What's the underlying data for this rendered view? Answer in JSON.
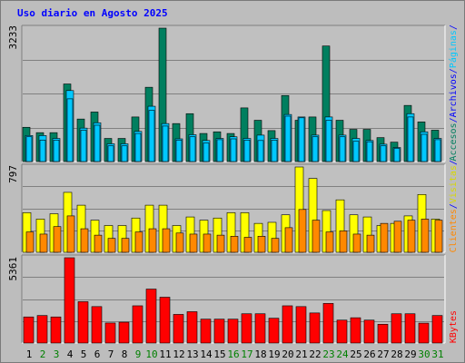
{
  "title": "Uso diario en Agosto 2025",
  "colors": {
    "accesos": "#007f5f",
    "archivos": "#00c8ff",
    "paginas": "#00c8ff",
    "visitas": "#ffff00",
    "clientes": "#ff8800",
    "kbytes": "#ff0000",
    "weekend_label": "#008000",
    "weekday_label": "#000000",
    "separator": "#0000ff",
    "panel_bg": "#c0c0c0",
    "gridline": "#808080"
  },
  "chart_data": [
    {
      "type": "bar",
      "panel": "top",
      "ymax_label": "3233",
      "ylim": [
        0,
        3233
      ],
      "categories": [
        "1",
        "2",
        "3",
        "4",
        "5",
        "6",
        "7",
        "8",
        "9",
        "10",
        "11",
        "12",
        "13",
        "14",
        "15",
        "16",
        "17",
        "18",
        "19",
        "20",
        "21",
        "22",
        "23",
        "24",
        "25",
        "26",
        "27",
        "28",
        "29",
        "30",
        "31"
      ],
      "legend": [
        "Accesos",
        "/",
        "Archivos",
        "/",
        "Páginas",
        "/"
      ],
      "series": [
        {
          "name": "Accesos",
          "values": [
            830,
            700,
            700,
            1880,
            1030,
            1200,
            560,
            560,
            1080,
            1800,
            3233,
            920,
            1160,
            680,
            720,
            680,
            1300,
            1000,
            750,
            1600,
            1000,
            1080,
            2800,
            1000,
            780,
            780,
            580,
            470,
            1360,
            960,
            760
          ]
        },
        {
          "name": "Archivos",
          "values": [
            630,
            630,
            560,
            1720,
            810,
            940,
            430,
            430,
            730,
            1340,
            920,
            550,
            650,
            510,
            560,
            600,
            560,
            640,
            560,
            1140,
            1080,
            640,
            1080,
            640,
            560,
            510,
            420,
            340,
            1160,
            720,
            560
          ]
        },
        {
          "name": "Páginas",
          "values": [
            600,
            520,
            520,
            1520,
            760,
            880,
            380,
            380,
            680,
            1240,
            860,
            520,
            600,
            450,
            530,
            550,
            520,
            510,
            520,
            1100,
            1060,
            600,
            1000,
            600,
            490,
            480,
            380,
            320,
            1080,
            660,
            530
          ]
        }
      ]
    },
    {
      "type": "bar",
      "panel": "middle",
      "ymax_label": "797",
      "ylim": [
        0,
        797
      ],
      "categories": [
        "1",
        "2",
        "3",
        "4",
        "5",
        "6",
        "7",
        "8",
        "9",
        "10",
        "11",
        "12",
        "13",
        "14",
        "15",
        "16",
        "17",
        "18",
        "19",
        "20",
        "21",
        "22",
        "23",
        "24",
        "25",
        "26",
        "27",
        "28",
        "29",
        "30",
        "31"
      ],
      "legend": [
        "Clientes",
        "/",
        "Visitas",
        "/"
      ],
      "series": [
        {
          "name": "Visitas",
          "values": [
            370,
            310,
            360,
            560,
            440,
            300,
            250,
            250,
            320,
            440,
            440,
            250,
            330,
            300,
            320,
            370,
            370,
            270,
            280,
            350,
            797,
            690,
            390,
            490,
            350,
            330,
            250,
            270,
            340,
            540,
            310
          ]
        },
        {
          "name": "Clientes",
          "values": [
            190,
            170,
            240,
            340,
            220,
            160,
            130,
            130,
            190,
            220,
            220,
            180,
            170,
            170,
            160,
            150,
            140,
            150,
            130,
            230,
            400,
            300,
            190,
            200,
            170,
            160,
            270,
            290,
            300,
            310,
            300
          ]
        }
      ]
    },
    {
      "type": "bar",
      "panel": "bottom",
      "ymax_label": "5361",
      "ylim": [
        0,
        5361
      ],
      "categories": [
        "1",
        "2",
        "3",
        "4",
        "5",
        "6",
        "7",
        "8",
        "9",
        "10",
        "11",
        "12",
        "13",
        "14",
        "15",
        "16",
        "17",
        "18",
        "19",
        "20",
        "21",
        "22",
        "23",
        "24",
        "25",
        "26",
        "27",
        "28",
        "29",
        "30",
        "31"
      ],
      "legend": [
        "KBytes"
      ],
      "series": [
        {
          "name": "KBytes",
          "values": [
            1640,
            1730,
            1640,
            5361,
            2600,
            2290,
            1260,
            1310,
            2340,
            3390,
            2880,
            1800,
            1970,
            1500,
            1500,
            1500,
            1840,
            1840,
            1560,
            2340,
            2290,
            1890,
            2490,
            1440,
            1590,
            1440,
            1180,
            1840,
            1840,
            1250,
            1730
          ]
        }
      ]
    }
  ],
  "day_labels": [
    {
      "label": "1",
      "weekend": false
    },
    {
      "label": "2",
      "weekend": true
    },
    {
      "label": "3",
      "weekend": true
    },
    {
      "label": "4",
      "weekend": false
    },
    {
      "label": "5",
      "weekend": false
    },
    {
      "label": "6",
      "weekend": false
    },
    {
      "label": "7",
      "weekend": false
    },
    {
      "label": "8",
      "weekend": false
    },
    {
      "label": "9",
      "weekend": true
    },
    {
      "label": "10",
      "weekend": true
    },
    {
      "label": "11",
      "weekend": false
    },
    {
      "label": "12",
      "weekend": false
    },
    {
      "label": "13",
      "weekend": false
    },
    {
      "label": "14",
      "weekend": false
    },
    {
      "label": "15",
      "weekend": false
    },
    {
      "label": "16",
      "weekend": true
    },
    {
      "label": "17",
      "weekend": true
    },
    {
      "label": "18",
      "weekend": false
    },
    {
      "label": "19",
      "weekend": false
    },
    {
      "label": "20",
      "weekend": false
    },
    {
      "label": "21",
      "weekend": false
    },
    {
      "label": "22",
      "weekend": false
    },
    {
      "label": "23",
      "weekend": true
    },
    {
      "label": "24",
      "weekend": true
    },
    {
      "label": "25",
      "weekend": false
    },
    {
      "label": "26",
      "weekend": false
    },
    {
      "label": "27",
      "weekend": false
    },
    {
      "label": "28",
      "weekend": false
    },
    {
      "label": "29",
      "weekend": false
    },
    {
      "label": "30",
      "weekend": true
    },
    {
      "label": "31",
      "weekend": true
    }
  ]
}
